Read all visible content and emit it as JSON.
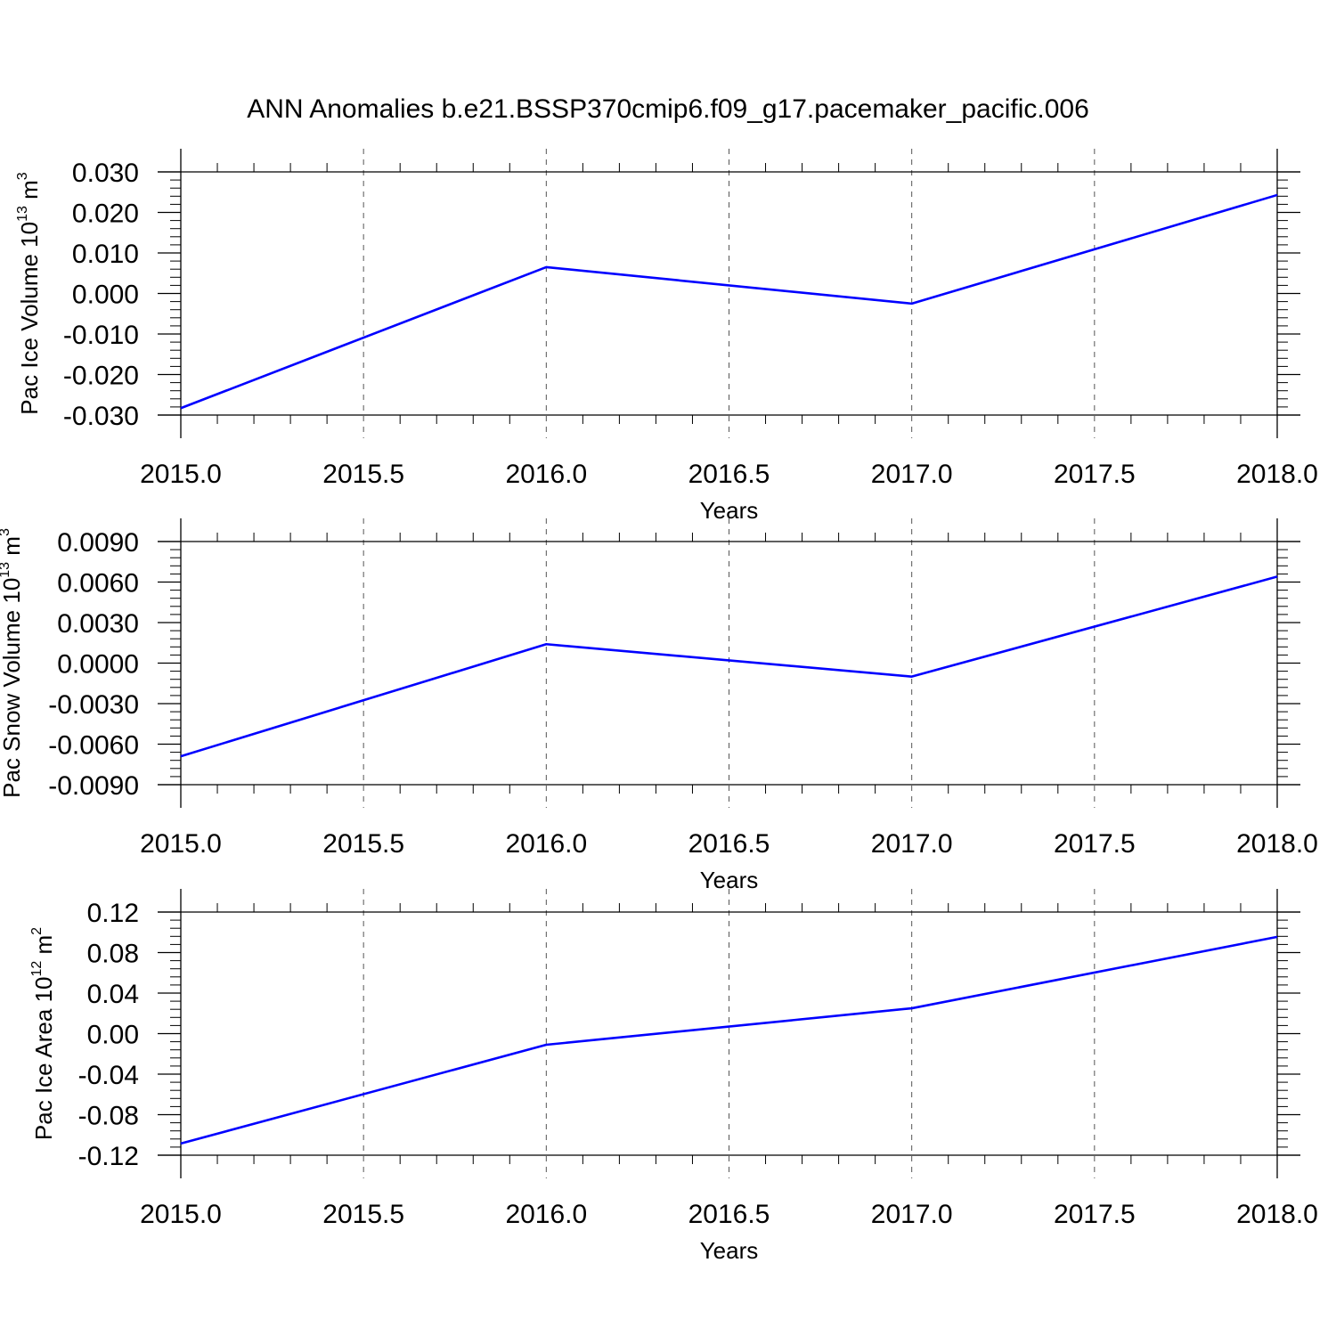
{
  "title": "ANN Anomalies b.e21.BSSP370cmip6.f09_g17.pacemaker_pacific.006",
  "chart_data": [
    {
      "type": "line",
      "title": "",
      "xlabel": "Years",
      "ylabel": {
        "main": "Pac Ice Volume 10",
        "exp": "13",
        "unit": " m",
        "unit_exp": "3"
      },
      "xlim": [
        2015.0,
        2018.0
      ],
      "ylim": [
        -0.03,
        0.03
      ],
      "xticks": [
        "2015.0",
        "2015.5",
        "2016.0",
        "2016.5",
        "2017.0",
        "2017.5",
        "2018.0"
      ],
      "xtick_values": [
        2015.0,
        2015.5,
        2016.0,
        2016.5,
        2017.0,
        2017.5,
        2018.0
      ],
      "yticks": [
        "0.030",
        "0.020",
        "0.010",
        "0.000",
        "-0.010",
        "-0.020",
        "-0.030"
      ],
      "ytick_values": [
        0.03,
        0.02,
        0.01,
        0.0,
        -0.01,
        -0.02,
        -0.03
      ],
      "grid": "vertical dashed at x ticks",
      "series": [
        {
          "x": [
            2015,
            2016,
            2017,
            2018
          ],
          "y": [
            -0.0283,
            0.0065,
            -0.0025,
            0.0243
          ],
          "color": "#0000ff"
        }
      ]
    },
    {
      "type": "line",
      "title": "",
      "xlabel": "Years",
      "ylabel": {
        "main": "Pac Snow Volume 10",
        "exp": "13",
        "unit": " m",
        "unit_exp": "3"
      },
      "xlim": [
        2015.0,
        2018.0
      ],
      "ylim": [
        -0.009,
        0.009
      ],
      "xticks": [
        "2015.0",
        "2015.5",
        "2016.0",
        "2016.5",
        "2017.0",
        "2017.5",
        "2018.0"
      ],
      "xtick_values": [
        2015.0,
        2015.5,
        2016.0,
        2016.5,
        2017.0,
        2017.5,
        2018.0
      ],
      "yticks": [
        "0.0090",
        "0.0060",
        "0.0030",
        "0.0000",
        "-0.0030",
        "-0.0060",
        "-0.0090"
      ],
      "ytick_values": [
        0.009,
        0.006,
        0.003,
        0.0,
        -0.003,
        -0.006,
        -0.009
      ],
      "grid": "vertical dashed at x ticks",
      "series": [
        {
          "x": [
            2015,
            2016,
            2017,
            2018
          ],
          "y": [
            -0.0069,
            0.0014,
            -0.001,
            0.0064
          ],
          "color": "#0000ff"
        }
      ]
    },
    {
      "type": "line",
      "title": "",
      "xlabel": "Years",
      "ylabel": {
        "main": "Pac Ice Area 10",
        "exp": "12",
        "unit": " m",
        "unit_exp": "2"
      },
      "xlim": [
        2015.0,
        2018.0
      ],
      "ylim": [
        -0.12,
        0.12
      ],
      "xticks": [
        "2015.0",
        "2015.5",
        "2016.0",
        "2016.5",
        "2017.0",
        "2017.5",
        "2018.0"
      ],
      "xtick_values": [
        2015.0,
        2015.5,
        2016.0,
        2016.5,
        2017.0,
        2017.5,
        2018.0
      ],
      "yticks": [
        "0.12",
        "0.08",
        "0.04",
        "0.00",
        "-0.04",
        "-0.08",
        "-0.12"
      ],
      "ytick_values": [
        0.12,
        0.08,
        0.04,
        0.0,
        -0.04,
        -0.08,
        -0.12
      ],
      "grid": "vertical dashed at x ticks",
      "series": [
        {
          "x": [
            2015,
            2016,
            2017,
            2018
          ],
          "y": [
            -0.1085,
            -0.011,
            0.025,
            0.0955
          ],
          "color": "#0000ff"
        }
      ]
    }
  ]
}
